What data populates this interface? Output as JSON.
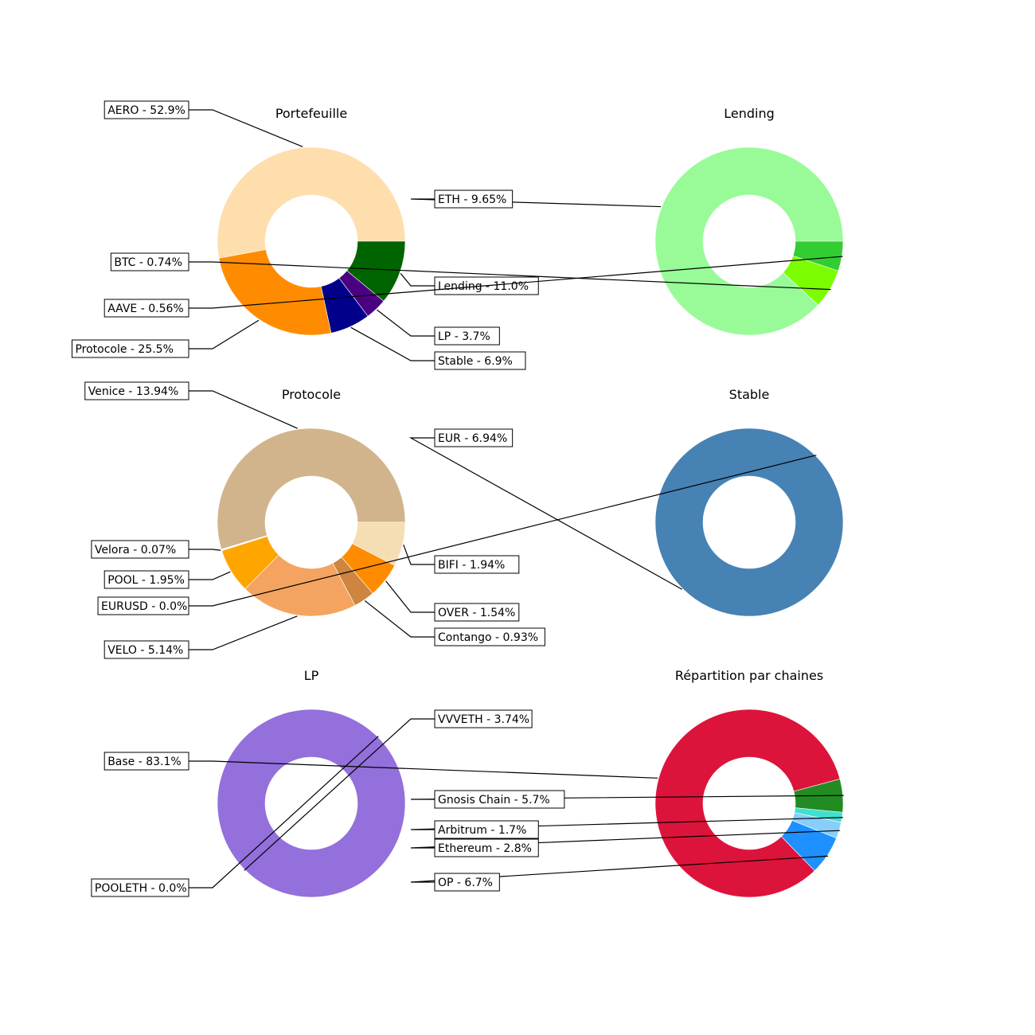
{
  "chart_data": [
    {
      "type": "pie",
      "donut": true,
      "title": "Portefeuille",
      "slices": [
        {
          "label": "AERO - 52.9%",
          "value": 52.9,
          "color": "#FFDEAD"
        },
        {
          "label": "Protocole - 25.5%",
          "value": 25.5,
          "color": "#FF8C00"
        },
        {
          "label": "Stable - 6.9%",
          "value": 6.9,
          "color": "#00008B"
        },
        {
          "label": "LP - 3.7%",
          "value": 3.7,
          "color": "#4B0082"
        },
        {
          "label": "Lending - 11.0%",
          "value": 11.0,
          "color": "#006400"
        }
      ]
    },
    {
      "type": "pie",
      "donut": true,
      "title": "Lending",
      "slices": [
        {
          "label": "ETH - 9.65%",
          "value": 9.65,
          "color": "#98FB98"
        },
        {
          "label": "BTC - 0.74%",
          "value": 0.74,
          "color": "#7CFC00"
        },
        {
          "label": "AAVE - 0.56%",
          "value": 0.56,
          "color": "#32CD32"
        }
      ]
    },
    {
      "type": "pie",
      "donut": true,
      "title": "Protocole",
      "slices": [
        {
          "label": "Venice - 13.94%",
          "value": 13.94,
          "color": "#D2B48C"
        },
        {
          "label": "Velora - 0.07%",
          "value": 0.07,
          "color": "#FFFFFF"
        },
        {
          "label": "POOL - 1.95%",
          "value": 1.95,
          "color": "#FFA500"
        },
        {
          "label": "VELO - 5.14%",
          "value": 5.14,
          "color": "#F4A460"
        },
        {
          "label": "Contango - 0.93%",
          "value": 0.93,
          "color": "#CD853F"
        },
        {
          "label": "OVER - 1.54%",
          "value": 1.54,
          "color": "#FF8C00"
        },
        {
          "label": "BIFI - 1.94%",
          "value": 1.94,
          "color": "#F5DEB3"
        }
      ]
    },
    {
      "type": "pie",
      "donut": true,
      "title": "Stable",
      "slices": [
        {
          "label": "EUR - 6.94%",
          "value": 6.94,
          "color": "#4682B4"
        },
        {
          "label": "EURUSD - 0.0%",
          "value": 0.0,
          "color": "#4682B4"
        }
      ]
    },
    {
      "type": "pie",
      "donut": true,
      "title": "LP",
      "slices": [
        {
          "label": "VVVETH - 3.74%",
          "value": 3.74,
          "color": "#9370DB"
        },
        {
          "label": "POOLETH - 0.0%",
          "value": 0.0,
          "color": "#9370DB"
        }
      ]
    },
    {
      "type": "pie",
      "donut": true,
      "title": "Répartition par chaines",
      "slices": [
        {
          "label": "Base - 83.1%",
          "value": 83.1,
          "color": "#DC143C"
        },
        {
          "label": "OP - 6.7%",
          "value": 6.7,
          "color": "#1E90FF"
        },
        {
          "label": "Ethereum - 2.8%",
          "value": 2.8,
          "color": "#87CEFA"
        },
        {
          "label": "Arbitrum - 1.7%",
          "value": 1.7,
          "color": "#40E0D0"
        },
        {
          "label": "Gnosis Chain - 5.7%",
          "value": 5.7,
          "color": "#228B22"
        }
      ]
    }
  ]
}
